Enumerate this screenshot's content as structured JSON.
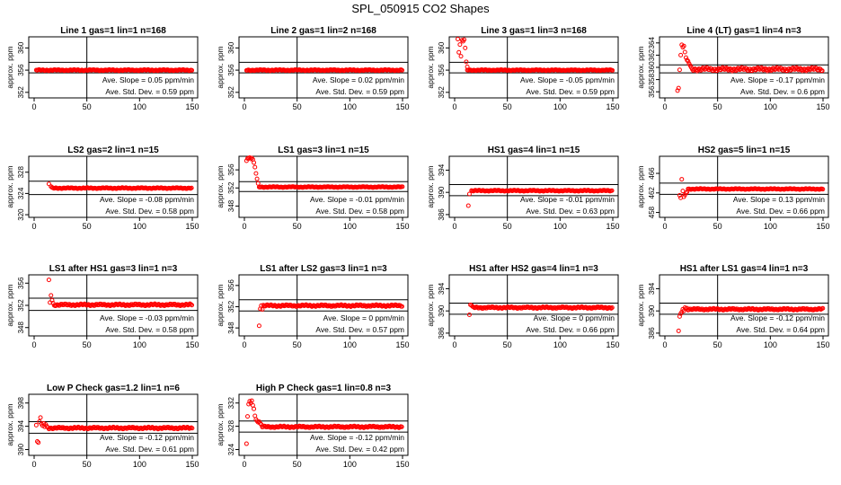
{
  "title": "SPL_050915  CO2 Shapes",
  "chart_data": [
    {
      "type": "scatter",
      "title": "Line 1 gas=1 lin=1 n=168",
      "ylabel": "approx. ppm",
      "xlim": [
        0,
        150
      ],
      "ylim": [
        351,
        362
      ],
      "yticks": [
        352,
        356,
        360
      ],
      "xticks": [
        0,
        50,
        100,
        150
      ],
      "hlines": [
        355.5,
        357.4
      ],
      "vline": 50,
      "series": [
        {
          "name": "Line 1",
          "x_start": 2,
          "x_end": 150,
          "baseline": 356.0,
          "noise": 0.12,
          "initial": []
        }
      ],
      "slope_text": "Ave. Slope =  0.05  ppm/min",
      "std_text": "Ave. Std. Dev. =  0.59  ppm"
    },
    {
      "type": "scatter",
      "title": "Line 2 gas=1 lin=2 n=168",
      "ylabel": "approx. ppm",
      "xlim": [
        0,
        150
      ],
      "ylim": [
        351,
        362
      ],
      "yticks": [
        352,
        356,
        360
      ],
      "xticks": [
        0,
        50,
        100,
        150
      ],
      "hlines": [
        355.5,
        357.4
      ],
      "vline": 50,
      "series": [
        {
          "name": "Line 2",
          "x_start": 2,
          "x_end": 150,
          "baseline": 356.0,
          "noise": 0.12,
          "initial": []
        }
      ],
      "slope_text": "Ave. Slope =  0.02  ppm/min",
      "std_text": "Ave. Std. Dev. =  0.59  ppm"
    },
    {
      "type": "scatter",
      "title": "Line 3 gas=1 lin=3 n=168",
      "ylabel": "approx. ppm",
      "xlim": [
        0,
        150
      ],
      "ylim": [
        351,
        362
      ],
      "yticks": [
        352,
        356,
        360
      ],
      "xticks": [
        0,
        50,
        100,
        150
      ],
      "hlines": [
        355.5,
        357.4
      ],
      "vline": 50,
      "series": [
        {
          "name": "Line 3",
          "x_start": 12,
          "x_end": 150,
          "baseline": 356.0,
          "noise": 0.1,
          "initial": [
            [
              3,
              361.6
            ],
            [
              4,
              359.2
            ],
            [
              5,
              360.6
            ],
            [
              6,
              358.5
            ],
            [
              7,
              361.4
            ],
            [
              8,
              361.2
            ],
            [
              9,
              361.5
            ],
            [
              10,
              360.0
            ],
            [
              11,
              357.5
            ],
            [
              12,
              356.6
            ]
          ]
        }
      ],
      "slope_text": "Ave. Slope =  -0.05  ppm/min",
      "std_text": "Ave. Std. Dev. =  0.59  ppm"
    },
    {
      "type": "scatter",
      "title": "Line 4 (LT) gas=1 lin=4 n=3",
      "ylabel": "approx. ppm",
      "xlim": [
        0,
        150
      ],
      "ylim": [
        355,
        365
      ],
      "yticks": [
        356,
        358,
        360,
        362,
        364
      ],
      "xticks": [
        0,
        50,
        100,
        150
      ],
      "hlines": [
        359.1,
        360.4
      ],
      "vline": 50,
      "series": [
        {
          "name": "Line 4",
          "x_start": 26,
          "x_end": 150,
          "baseline": 359.7,
          "noise": 0.3,
          "initial": [
            [
              12,
              356.2
            ],
            [
              13,
              356.6
            ],
            [
              14,
              359.6
            ],
            [
              15,
              362.0
            ],
            [
              16,
              363.7
            ],
            [
              17,
              363.3
            ],
            [
              18,
              363.5
            ],
            [
              19,
              362.5
            ],
            [
              20,
              361.6
            ],
            [
              21,
              361.2
            ],
            [
              22,
              361.0
            ],
            [
              23,
              360.6
            ],
            [
              24,
              360.3
            ],
            [
              25,
              360.0
            ]
          ]
        }
      ],
      "slope_text": "Ave. Slope =  -0.17  ppm/min",
      "std_text": "Ave. Std. Dev. =  0.6  ppm"
    },
    {
      "type": "scatter",
      "title": "LS2 gas=2 lin=1 n=15",
      "ylabel": "approx. ppm",
      "xlim": [
        0,
        150
      ],
      "ylim": [
        319.5,
        331
      ],
      "yticks": [
        320,
        324,
        328
      ],
      "xticks": [
        0,
        50,
        100,
        150
      ],
      "hlines": [
        323.8,
        326.3
      ],
      "vline": 50,
      "series": [
        {
          "name": "LS2",
          "x_start": 17,
          "x_end": 150,
          "baseline": 325.0,
          "noise": 0.12,
          "initial": [
            [
              14,
              325.8
            ],
            [
              16,
              325.3
            ]
          ]
        }
      ],
      "slope_text": "Ave. Slope =  -0.08  ppm/min",
      "std_text": "Ave. Std. Dev. =  0.58  ppm"
    },
    {
      "type": "scatter",
      "title": "LS1 gas=3 lin=1 n=15",
      "ylabel": "approx. ppm",
      "xlim": [
        0,
        150
      ],
      "ylim": [
        345.5,
        359
      ],
      "yticks": [
        348,
        352,
        356
      ],
      "xticks": [
        0,
        50,
        100,
        150
      ],
      "hlines": [
        351.2,
        353.4
      ],
      "vline": 50,
      "series": [
        {
          "name": "LS1",
          "x_start": 14,
          "x_end": 150,
          "baseline": 352.2,
          "noise": 0.12,
          "initial": [
            [
              2,
              358.0
            ],
            [
              3,
              358.5
            ],
            [
              4,
              358.6
            ],
            [
              5,
              358.7
            ],
            [
              6,
              358.4
            ],
            [
              7,
              358.6
            ],
            [
              8,
              358.3
            ],
            [
              9,
              357.6
            ],
            [
              10,
              356.6
            ],
            [
              11,
              355.2
            ],
            [
              12,
              354.0
            ],
            [
              13,
              353.0
            ]
          ]
        }
      ],
      "slope_text": "Ave. Slope =  -0.01  ppm/min",
      "std_text": "Ave. Std. Dev. =  0.58  ppm"
    },
    {
      "type": "scatter",
      "title": "HS1 gas=4 lin=1 n=15",
      "ylabel": "approx. ppm",
      "xlim": [
        0,
        150
      ],
      "ylim": [
        385.5,
        396.5
      ],
      "yticks": [
        386,
        390,
        394
      ],
      "xticks": [
        0,
        50,
        100,
        150
      ],
      "hlines": [
        389.4,
        391.4
      ],
      "vline": 50,
      "series": [
        {
          "name": "HS1",
          "x_start": 16,
          "x_end": 150,
          "baseline": 390.3,
          "noise": 0.12,
          "initial": [
            [
              13,
              387.6
            ],
            [
              14,
              389.7
            ]
          ]
        }
      ],
      "slope_text": "Ave. Slope =  -0.01  ppm/min",
      "std_text": "Ave. Std. Dev. =  0.63  ppm"
    },
    {
      "type": "scatter",
      "title": "HS2 gas=5 lin=1 n=15",
      "ylabel": "approx. ppm",
      "xlim": [
        0,
        150
      ],
      "ylim": [
        457,
        469.5
      ],
      "yticks": [
        458,
        462,
        466
      ],
      "xticks": [
        0,
        50,
        100,
        150
      ],
      "hlines": [
        461.7,
        464.0
      ],
      "vline": 50,
      "series": [
        {
          "name": "HS2",
          "x_start": 22,
          "x_end": 150,
          "baseline": 462.8,
          "noise": 0.12,
          "initial": [
            [
              14,
              461.5
            ],
            [
              15,
              461.0
            ],
            [
              16,
              464.8
            ],
            [
              17,
              462.4
            ],
            [
              18,
              461.2
            ],
            [
              19,
              461.6
            ],
            [
              20,
              462.0
            ],
            [
              21,
              462.2
            ]
          ]
        }
      ],
      "slope_text": "Ave. Slope =  0.13  ppm/min",
      "std_text": "Ave. Std. Dev. =  0.66  ppm"
    },
    {
      "type": "scatter",
      "title": "LS1 after HS1 gas=3 lin=1 n=3",
      "ylabel": "approx. ppm",
      "xlim": [
        0,
        150
      ],
      "ylim": [
        346.5,
        357.5
      ],
      "yticks": [
        348,
        352,
        356
      ],
      "xticks": [
        0,
        50,
        100,
        150
      ],
      "hlines": [
        351.1,
        353.3
      ],
      "vline": 50,
      "series": [
        {
          "name": "LS1 after HS1",
          "x_start": 20,
          "x_end": 150,
          "baseline": 352.1,
          "noise": 0.2,
          "initial": [
            [
              14,
              356.6
            ],
            [
              15,
              352.5
            ],
            [
              16,
              353.8
            ],
            [
              17,
              352.9
            ],
            [
              18,
              352.4
            ],
            [
              19,
              352.0
            ]
          ]
        }
      ],
      "slope_text": "Ave. Slope =  -0.03  ppm/min",
      "std_text": "Ave. Std. Dev. =  0.58  ppm"
    },
    {
      "type": "scatter",
      "title": "LS1 after LS2 gas=3 lin=1 n=3",
      "ylabel": "approx. ppm",
      "xlim": [
        0,
        150
      ],
      "ylim": [
        346.5,
        358
      ],
      "yticks": [
        348,
        352,
        356
      ],
      "xticks": [
        0,
        50,
        100,
        150
      ],
      "hlines": [
        351.2,
        353.3
      ],
      "vline": 50,
      "series": [
        {
          "name": "LS1 after LS2",
          "x_start": 19,
          "x_end": 150,
          "baseline": 352.2,
          "noise": 0.2,
          "initial": [
            [
              14,
              348.4
            ],
            [
              15,
              351.6
            ],
            [
              16,
              352.2
            ],
            [
              17,
              351.5
            ],
            [
              18,
              352.3
            ]
          ]
        }
      ],
      "slope_text": "Ave. Slope =  0  ppm/min",
      "std_text": "Ave. Std. Dev. =  0.57  ppm"
    },
    {
      "type": "scatter",
      "title": "HS1 after HS2 gas=4 lin=1 n=3",
      "ylabel": "approx. ppm",
      "xlim": [
        0,
        150
      ],
      "ylim": [
        385.5,
        396.5
      ],
      "yticks": [
        386,
        390,
        394
      ],
      "xticks": [
        0,
        50,
        100,
        150
      ],
      "hlines": [
        389.4,
        391.4
      ],
      "vline": 50,
      "series": [
        {
          "name": "HS1 after HS2",
          "x_start": 18,
          "x_end": 150,
          "baseline": 390.6,
          "noise": 0.18,
          "initial": [
            [
              14,
              389.3
            ],
            [
              15,
              391.1
            ],
            [
              16,
              391.0
            ],
            [
              17,
              390.8
            ]
          ]
        }
      ],
      "slope_text": "Ave. Slope =  0  ppm/min",
      "std_text": "Ave. Std. Dev. =  0.66  ppm"
    },
    {
      "type": "scatter",
      "title": "HS1 after LS1 gas=4 lin=1 n=3",
      "ylabel": "approx. ppm",
      "xlim": [
        0,
        150
      ],
      "ylim": [
        385.5,
        396.5
      ],
      "yticks": [
        386,
        390,
        394
      ],
      "xticks": [
        0,
        50,
        100,
        150
      ],
      "hlines": [
        389.4,
        391.4
      ],
      "vline": 50,
      "series": [
        {
          "name": "HS1 after LS1",
          "x_start": 22,
          "x_end": 150,
          "baseline": 390.3,
          "noise": 0.18,
          "initial": [
            [
              13,
              386.4
            ],
            [
              14,
              389.0
            ],
            [
              15,
              389.5
            ],
            [
              16,
              389.8
            ],
            [
              17,
              390.3
            ],
            [
              18,
              390.0
            ],
            [
              19,
              390.6
            ],
            [
              20,
              390.4
            ],
            [
              21,
              390.5
            ]
          ]
        }
      ],
      "slope_text": "Ave. Slope =  -0.12  ppm/min",
      "std_text": "Ave. Std. Dev. =  0.64  ppm"
    },
    {
      "type": "scatter",
      "title": "Low P Check gas=1.2 lin=1 n=6",
      "ylabel": "approx. ppm",
      "xlim": [
        0,
        150
      ],
      "ylim": [
        389,
        399.5
      ],
      "yticks": [
        390,
        394,
        398
      ],
      "xticks": [
        0,
        50,
        100,
        150
      ],
      "hlines": [
        392.8,
        394.8
      ],
      "vline": 50,
      "series": [
        {
          "name": "Low P Check",
          "x_start": 14,
          "x_end": 150,
          "baseline": 393.7,
          "noise": 0.18,
          "initial": [
            [
              2,
              394.2
            ],
            [
              3,
              391.4
            ],
            [
              4,
              391.2
            ],
            [
              5,
              394.8
            ],
            [
              6,
              395.5
            ],
            [
              7,
              394.4
            ],
            [
              8,
              394.1
            ],
            [
              9,
              394.5
            ],
            [
              10,
              393.9
            ],
            [
              11,
              394.3
            ],
            [
              12,
              394.0
            ],
            [
              13,
              393.8
            ]
          ]
        }
      ],
      "slope_text": "Ave. Slope =  -0.12  ppm/min",
      "std_text": "Ave. Std. Dev. =  0.61  ppm"
    },
    {
      "type": "scatter",
      "title": "High P Check gas=1 lin=0.8 n=3",
      "ylabel": "approx. ppm",
      "xlim": [
        0,
        150
      ],
      "ylim": [
        323,
        333.5
      ],
      "yticks": [
        324,
        328,
        332
      ],
      "xticks": [
        0,
        50,
        100,
        150
      ],
      "hlines": [
        327.0,
        328.9
      ],
      "vline": 50,
      "series": [
        {
          "name": "High P Check",
          "x_start": 17,
          "x_end": 150,
          "baseline": 327.9,
          "noise": 0.17,
          "initial": [
            [
              2,
              325.0
            ],
            [
              3,
              329.7
            ],
            [
              4,
              331.8
            ],
            [
              5,
              332.3
            ],
            [
              6,
              332.0
            ],
            [
              7,
              332.4
            ],
            [
              8,
              331.6
            ],
            [
              9,
              331.0
            ],
            [
              10,
              329.8
            ],
            [
              11,
              329.2
            ],
            [
              12,
              328.9
            ],
            [
              13,
              328.7
            ],
            [
              14,
              328.8
            ],
            [
              15,
              328.5
            ],
            [
              16,
              328.3
            ]
          ]
        }
      ],
      "slope_text": "Ave. Slope =  -0.12  ppm/min",
      "std_text": "Ave. Std. Dev. =  0.42  ppm"
    }
  ]
}
